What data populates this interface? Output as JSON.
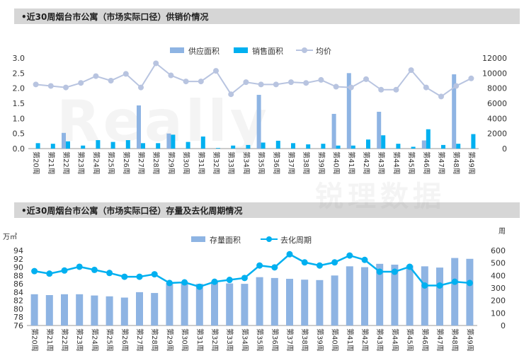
{
  "header1": "•近30周烟台市公寓（市场实际口径）供销价情况",
  "header2": "•近30周烟台市公寓（市场实际口径）存量及去化周期情况",
  "watermark": {
    "logo": "Really",
    "sub": "锐理数据"
  },
  "chart_data": [
    {
      "type": "bar+line",
      "categories": [
        "第20周",
        "第21周",
        "第22周",
        "第23周",
        "第24周",
        "第25周",
        "第26周",
        "第27周",
        "第28周",
        "第29周",
        "第30周",
        "第31周",
        "第32周",
        "第33周",
        "第34周",
        "第35周",
        "第36周",
        "第37周",
        "第38周",
        "第39周",
        "第40周",
        "第41周",
        "第42周",
        "第43周",
        "第44周",
        "第45周",
        "第46周",
        "第47周",
        "第48周",
        "第49周"
      ],
      "series": [
        {
          "name": "供应面积",
          "type": "bar",
          "axis": "left",
          "color": "#8eb4e3",
          "values": [
            0,
            0,
            0.52,
            0,
            0,
            0,
            0,
            1.43,
            0,
            0.5,
            0,
            0,
            0,
            0,
            0,
            1.78,
            0,
            0,
            0,
            0,
            1.15,
            2.5,
            0,
            1.22,
            0,
            0,
            0.27,
            0,
            2.46,
            0
          ]
        },
        {
          "name": "销售面积",
          "type": "bar",
          "axis": "left",
          "color": "#00b0f0",
          "values": [
            0.18,
            0.16,
            0.24,
            0.1,
            0.28,
            0.22,
            0.28,
            0.18,
            0.18,
            0.46,
            0.22,
            0.4,
            0.02,
            0.1,
            0.12,
            0.2,
            0.26,
            0.18,
            0.14,
            0.16,
            0.1,
            0.1,
            0.3,
            0.44,
            0.16,
            0.06,
            0.64,
            0.12,
            0.16,
            0.48
          ]
        },
        {
          "name": "均价",
          "type": "line",
          "axis": "right",
          "color": "#b8c4e0",
          "values": [
            8500,
            8300,
            8100,
            8700,
            9600,
            9000,
            9900,
            8100,
            11300,
            9700,
            8900,
            8900,
            10300,
            7200,
            8800,
            8500,
            8500,
            8800,
            8700,
            9100,
            8200,
            8100,
            9200,
            7800,
            7800,
            10400,
            8100,
            6900,
            8300,
            9300
          ]
        }
      ],
      "y_left": {
        "range": [
          0,
          3.0
        ],
        "ticks": [
          "0.0",
          "0.5",
          "1.0",
          "1.5",
          "2.0",
          "2.5",
          "3.0"
        ]
      },
      "y_right": {
        "range": [
          0,
          12000
        ],
        "ticks": [
          "0",
          "2000",
          "4000",
          "6000",
          "8000",
          "10000",
          "12000"
        ]
      },
      "legend_position": "top"
    },
    {
      "type": "bar+line",
      "categories": [
        "第20周",
        "第21周",
        "第22周",
        "第23周",
        "第24周",
        "第25周",
        "第26周",
        "第27周",
        "第28周",
        "第29周",
        "第30周",
        "第31周",
        "第32周",
        "第33周",
        "第34周",
        "第35周",
        "第36周",
        "第37周",
        "第38周",
        "第39周",
        "第40周",
        "第41周",
        "第42周",
        "第43周",
        "第44周",
        "第45周",
        "第46周",
        "第47周",
        "第48周",
        "第49周"
      ],
      "series": [
        {
          "name": "存量面积",
          "type": "bar",
          "axis": "left",
          "color": "#8eb4e3",
          "values": [
            83.5,
            83.3,
            83.5,
            83.5,
            83.2,
            83.0,
            82.7,
            84.0,
            83.8,
            86.2,
            86.4,
            86.0,
            86.6,
            86.1,
            86.0,
            87.6,
            87.4,
            87.2,
            87.0,
            86.9,
            88.0,
            90.2,
            90.0,
            90.8,
            90.6,
            90.4,
            90.2,
            89.9,
            92.2,
            92.0
          ]
        },
        {
          "name": "去化周期",
          "type": "line",
          "axis": "right",
          "color": "#00b0f0",
          "values": [
            435,
            415,
            440,
            470,
            445,
            420,
            390,
            390,
            410,
            340,
            345,
            310,
            350,
            365,
            380,
            480,
            465,
            570,
            505,
            480,
            505,
            560,
            525,
            430,
            430,
            470,
            320,
            320,
            350,
            340
          ]
        }
      ],
      "y_left": {
        "unit": "万㎡",
        "range": [
          76,
          94
        ],
        "ticks": [
          "76",
          "78",
          "80",
          "82",
          "84",
          "86",
          "88",
          "90",
          "92",
          "94"
        ]
      },
      "y_right": {
        "unit": "周",
        "range": [
          0,
          600
        ],
        "ticks": [
          "0",
          "100",
          "200",
          "300",
          "400",
          "500",
          "600"
        ]
      },
      "legend_position": "top"
    }
  ]
}
